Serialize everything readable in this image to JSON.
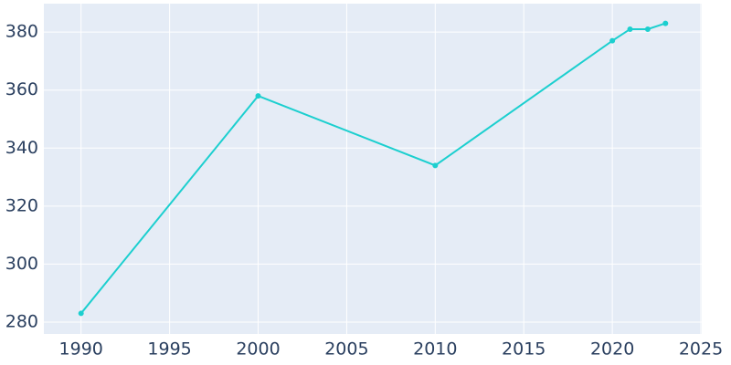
{
  "chart_data": {
    "type": "line",
    "x": [
      1990,
      2000,
      2010,
      2020,
      2021,
      2022,
      2023
    ],
    "series": [
      {
        "color": "#1ccfcf",
        "values": [
          283,
          358,
          334,
          377,
          381,
          381,
          383
        ]
      }
    ],
    "xlim": [
      1987.9,
      2025.05
    ],
    "xticks": [
      1990,
      1995,
      2000,
      2005,
      2010,
      2015,
      2020,
      2025
    ],
    "ylim": [
      275.9,
      389.8
    ],
    "yticks": [
      280,
      300,
      320,
      340,
      360,
      380
    ],
    "grid": true,
    "background": "#e5ecf6"
  }
}
